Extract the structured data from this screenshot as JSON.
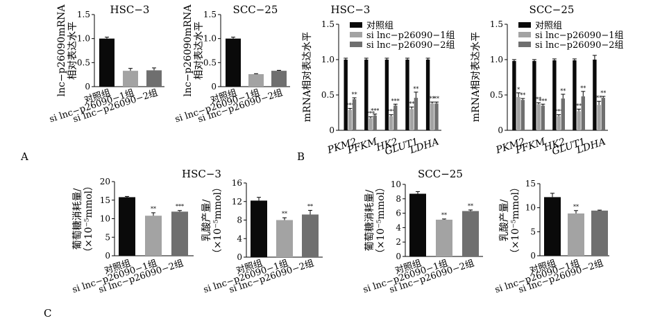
{
  "panel_labels": {
    "A": "A",
    "B": "B",
    "C": "C"
  },
  "colors": {
    "control": "#0a0a0a",
    "si1": "#a3a3a3",
    "si2": "#6f6f6f"
  },
  "chart_data": [
    {
      "id": "A1",
      "type": "bar",
      "title": "HSC−3",
      "ylabel": "lnc−p26090mRNA 相对表达水平",
      "ylim": [
        0,
        1.5
      ],
      "yticks": [
        "0",
        "0.5",
        "1.0",
        "1.5"
      ],
      "categories": [
        "对照组",
        "si lnc−p26090−1组",
        "si lnc−p26090−2组"
      ],
      "values": [
        1.0,
        0.33,
        0.34
      ],
      "errors": [
        0.03,
        0.05,
        0.05
      ],
      "stars": [
        "",
        "",
        ""
      ]
    },
    {
      "id": "A2",
      "type": "bar",
      "title": "SCC−25",
      "ylabel": "lnc−p26090mRNA 相对表达水平",
      "ylim": [
        0,
        1.5
      ],
      "yticks": [
        "0",
        "0.5",
        "1.0",
        "1.5"
      ],
      "categories": [
        "对照组",
        "si lnc−p26090−1组",
        "si lnc−p26090−2组"
      ],
      "values": [
        1.0,
        0.26,
        0.33
      ],
      "errors": [
        0.03,
        0.01,
        0.01
      ],
      "stars": [
        "",
        "",
        ""
      ]
    },
    {
      "id": "B1",
      "type": "bar",
      "title": "HSC−3",
      "ylabel": "mRNA相对表达水平",
      "ylim": [
        0,
        1.5
      ],
      "yticks": [
        "0",
        "0.5",
        "1.0",
        "1.5"
      ],
      "categories": [
        "PKM2",
        "PFKM",
        "HK2",
        "GLUT1",
        "LDHA"
      ],
      "legend": [
        "对照组",
        "si lnc−p26090−1组",
        "si lnc−p26090−2组"
      ],
      "legend_position": "top",
      "series": [
        {
          "name": "对照组",
          "values": [
            1.0,
            1.0,
            1.0,
            1.0,
            1.0
          ],
          "errors": [
            0.02,
            0.02,
            0.02,
            0.02,
            0.02
          ],
          "stars": [
            "",
            "",
            "",
            "",
            ""
          ]
        },
        {
          "name": "si lnc−p26090−1组",
          "values": [
            0.29,
            0.17,
            0.2,
            0.3,
            0.38
          ],
          "errors": [
            0.02,
            0.02,
            0.02,
            0.03,
            0.02
          ],
          "stars": [
            "***",
            "***",
            "***",
            "**",
            "**"
          ]
        },
        {
          "name": "si lnc−p26090−2组",
          "values": [
            0.44,
            0.21,
            0.35,
            0.46,
            0.38
          ],
          "errors": [
            0.02,
            0.02,
            0.02,
            0.08,
            0.02
          ],
          "stars": [
            "**",
            "***",
            "***",
            "**",
            "**"
          ]
        }
      ]
    },
    {
      "id": "B2",
      "type": "bar",
      "title": "SCC−25",
      "ylabel": "mRNA相对表达水平",
      "ylim": [
        0,
        1.5
      ],
      "yticks": [
        "0",
        "0.5",
        "1.0",
        "1.5"
      ],
      "categories": [
        "PKM2",
        "PFKM",
        "HK2",
        "GLUT1",
        "LDHA"
      ],
      "legend": [
        "对照组",
        "si lnc−p26090−1组",
        "si lnc−p26090−2组"
      ],
      "legend_position": "top",
      "series": [
        {
          "name": "对照组",
          "values": [
            0.98,
            0.98,
            0.99,
            0.99,
            1.0
          ],
          "errors": [
            0.02,
            0.02,
            0.02,
            0.02,
            0.06
          ],
          "stars": [
            "",
            "",
            "",
            "",
            ""
          ]
        },
        {
          "name": "si lnc−p26090−1组",
          "values": [
            0.47,
            0.37,
            0.2,
            0.27,
            0.36
          ],
          "errors": [
            0.06,
            0.02,
            0.02,
            0.03,
            0.05
          ],
          "stars": [
            "*",
            "**",
            "***",
            "**",
            "**"
          ]
        },
        {
          "name": "si lnc−p26090−2组",
          "values": [
            0.43,
            0.35,
            0.45,
            0.48,
            0.46
          ],
          "errors": [
            0.02,
            0.02,
            0.06,
            0.07,
            0.02
          ],
          "stars": [
            "**",
            "***",
            "**",
            "**",
            "**"
          ]
        }
      ]
    },
    {
      "id": "C1",
      "type": "bar",
      "title": "",
      "ylabel": "葡萄糖消耗量/ （×10⁻⁵mmol）",
      "ylim": [
        0,
        20
      ],
      "yticks": [
        "0",
        "5",
        "10",
        "15",
        "20"
      ],
      "categories": [
        "对照组",
        "si lnc−p26090−1组",
        "si lnc−p26090−2组"
      ],
      "values": [
        15.8,
        10.8,
        11.9
      ],
      "errors": [
        0.2,
        0.8,
        0.3
      ],
      "stars": [
        "",
        "**",
        "***"
      ]
    },
    {
      "id": "C2",
      "type": "bar",
      "title": "",
      "ylabel": "乳酸产量/ （×10⁻⁵mmol）",
      "ylim": [
        0,
        16
      ],
      "yticks": [
        "0",
        "4",
        "8",
        "12",
        "16"
      ],
      "categories": [
        "对照组",
        "si lnc−p26090−1组",
        "si lnc−p26090−2组"
      ],
      "values": [
        12.2,
        8.0,
        9.2
      ],
      "errors": [
        0.7,
        0.5,
        0.9
      ],
      "stars": [
        "",
        "**",
        "**"
      ]
    },
    {
      "id": "C3",
      "type": "bar",
      "title": "",
      "ylabel": "葡萄糖消耗量/ （×10⁻⁵mmol）",
      "ylim": [
        0,
        10
      ],
      "yticks": [
        "0",
        "2",
        "4",
        "6",
        "8",
        "10"
      ],
      "categories": [
        "对照组",
        "si lnc−p26090−1组",
        "si lnc−p26090−2组"
      ],
      "values": [
        8.7,
        5.1,
        6.3
      ],
      "errors": [
        0.3,
        0.1,
        0.15
      ],
      "stars": [
        "",
        "**",
        "**"
      ]
    },
    {
      "id": "C4",
      "type": "bar",
      "title": "",
      "ylabel": "乳酸产量/ （×10⁻⁵mmol）",
      "ylim": [
        0,
        15
      ],
      "yticks": [
        "0",
        "5",
        "10",
        "15"
      ],
      "categories": [
        "对照组",
        "si lnc−p26090−1组",
        "si lnc−p26090−2组"
      ],
      "values": [
        12.2,
        8.8,
        9.4
      ],
      "errors": [
        0.8,
        0.6,
        0.1
      ],
      "stars": [
        "",
        "**",
        ""
      ]
    }
  ],
  "section_titles": {
    "C_left": "HSC−3",
    "C_right": "SCC−25"
  }
}
